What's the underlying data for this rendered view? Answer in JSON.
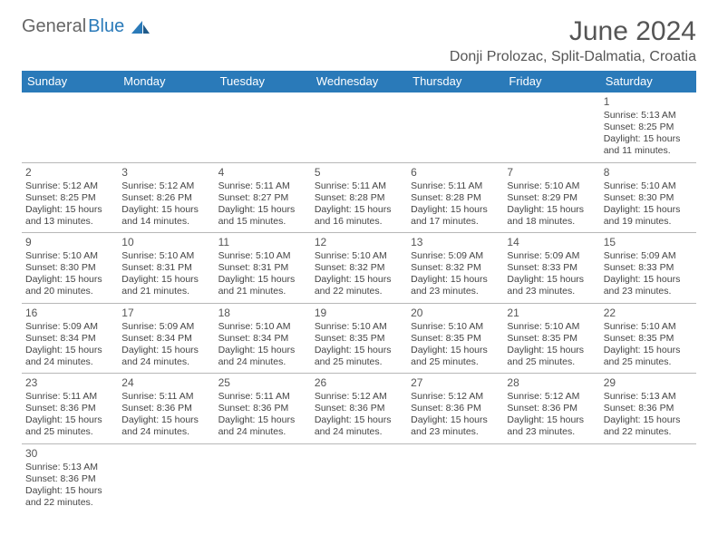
{
  "logo": {
    "text_gray": "General",
    "text_blue": "Blue"
  },
  "title": "June 2024",
  "location": "Donji Prolozac, Split-Dalmatia, Croatia",
  "colors": {
    "header_bg": "#2a7ab9",
    "header_text": "#ffffff",
    "row_border": "#2a7ab9",
    "text": "#444444"
  },
  "day_headers": [
    "Sunday",
    "Monday",
    "Tuesday",
    "Wednesday",
    "Thursday",
    "Friday",
    "Saturday"
  ],
  "weeks": [
    [
      null,
      null,
      null,
      null,
      null,
      null,
      {
        "d": "1",
        "sr": "5:13 AM",
        "ss": "8:25 PM",
        "dl": "15 hours and 11 minutes."
      }
    ],
    [
      {
        "d": "2",
        "sr": "5:12 AM",
        "ss": "8:25 PM",
        "dl": "15 hours and 13 minutes."
      },
      {
        "d": "3",
        "sr": "5:12 AM",
        "ss": "8:26 PM",
        "dl": "15 hours and 14 minutes."
      },
      {
        "d": "4",
        "sr": "5:11 AM",
        "ss": "8:27 PM",
        "dl": "15 hours and 15 minutes."
      },
      {
        "d": "5",
        "sr": "5:11 AM",
        "ss": "8:28 PM",
        "dl": "15 hours and 16 minutes."
      },
      {
        "d": "6",
        "sr": "5:11 AM",
        "ss": "8:28 PM",
        "dl": "15 hours and 17 minutes."
      },
      {
        "d": "7",
        "sr": "5:10 AM",
        "ss": "8:29 PM",
        "dl": "15 hours and 18 minutes."
      },
      {
        "d": "8",
        "sr": "5:10 AM",
        "ss": "8:30 PM",
        "dl": "15 hours and 19 minutes."
      }
    ],
    [
      {
        "d": "9",
        "sr": "5:10 AM",
        "ss": "8:30 PM",
        "dl": "15 hours and 20 minutes."
      },
      {
        "d": "10",
        "sr": "5:10 AM",
        "ss": "8:31 PM",
        "dl": "15 hours and 21 minutes."
      },
      {
        "d": "11",
        "sr": "5:10 AM",
        "ss": "8:31 PM",
        "dl": "15 hours and 21 minutes."
      },
      {
        "d": "12",
        "sr": "5:10 AM",
        "ss": "8:32 PM",
        "dl": "15 hours and 22 minutes."
      },
      {
        "d": "13",
        "sr": "5:09 AM",
        "ss": "8:32 PM",
        "dl": "15 hours and 23 minutes."
      },
      {
        "d": "14",
        "sr": "5:09 AM",
        "ss": "8:33 PM",
        "dl": "15 hours and 23 minutes."
      },
      {
        "d": "15",
        "sr": "5:09 AM",
        "ss": "8:33 PM",
        "dl": "15 hours and 23 minutes."
      }
    ],
    [
      {
        "d": "16",
        "sr": "5:09 AM",
        "ss": "8:34 PM",
        "dl": "15 hours and 24 minutes."
      },
      {
        "d": "17",
        "sr": "5:09 AM",
        "ss": "8:34 PM",
        "dl": "15 hours and 24 minutes."
      },
      {
        "d": "18",
        "sr": "5:10 AM",
        "ss": "8:34 PM",
        "dl": "15 hours and 24 minutes."
      },
      {
        "d": "19",
        "sr": "5:10 AM",
        "ss": "8:35 PM",
        "dl": "15 hours and 25 minutes."
      },
      {
        "d": "20",
        "sr": "5:10 AM",
        "ss": "8:35 PM",
        "dl": "15 hours and 25 minutes."
      },
      {
        "d": "21",
        "sr": "5:10 AM",
        "ss": "8:35 PM",
        "dl": "15 hours and 25 minutes."
      },
      {
        "d": "22",
        "sr": "5:10 AM",
        "ss": "8:35 PM",
        "dl": "15 hours and 25 minutes."
      }
    ],
    [
      {
        "d": "23",
        "sr": "5:11 AM",
        "ss": "8:36 PM",
        "dl": "15 hours and 25 minutes."
      },
      {
        "d": "24",
        "sr": "5:11 AM",
        "ss": "8:36 PM",
        "dl": "15 hours and 24 minutes."
      },
      {
        "d": "25",
        "sr": "5:11 AM",
        "ss": "8:36 PM",
        "dl": "15 hours and 24 minutes."
      },
      {
        "d": "26",
        "sr": "5:12 AM",
        "ss": "8:36 PM",
        "dl": "15 hours and 24 minutes."
      },
      {
        "d": "27",
        "sr": "5:12 AM",
        "ss": "8:36 PM",
        "dl": "15 hours and 23 minutes."
      },
      {
        "d": "28",
        "sr": "5:12 AM",
        "ss": "8:36 PM",
        "dl": "15 hours and 23 minutes."
      },
      {
        "d": "29",
        "sr": "5:13 AM",
        "ss": "8:36 PM",
        "dl": "15 hours and 22 minutes."
      }
    ],
    [
      {
        "d": "30",
        "sr": "5:13 AM",
        "ss": "8:36 PM",
        "dl": "15 hours and 22 minutes."
      },
      null,
      null,
      null,
      null,
      null,
      null
    ]
  ],
  "labels": {
    "sunrise": "Sunrise:",
    "sunset": "Sunset:",
    "daylight": "Daylight:"
  }
}
